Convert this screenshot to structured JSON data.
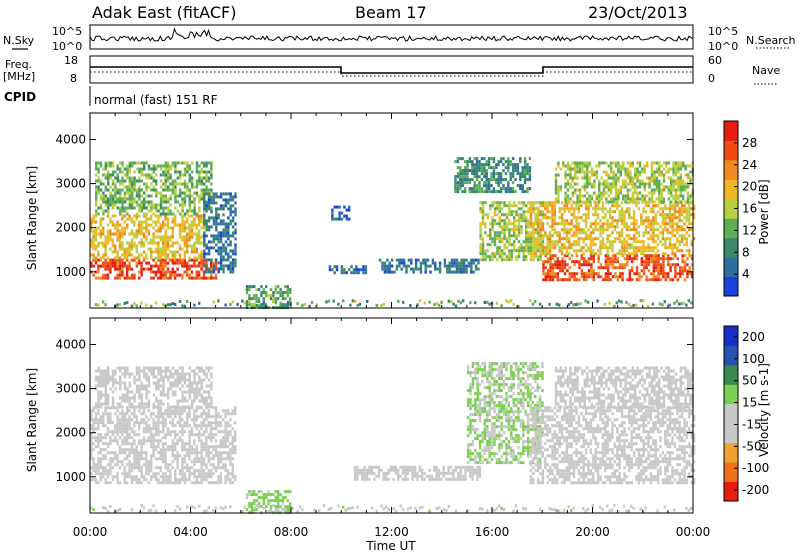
{
  "header": {
    "station": "Adak East (fitACF)",
    "beam": "Beam 17",
    "date": "23/Oct/2013"
  },
  "top_labels": {
    "nsky": "N.Sky",
    "nsearch": "N.Search",
    "freq": "Freq.",
    "freq_unit": "[MHz]",
    "nave": "Nave",
    "cpid": "CPID",
    "cpid_text": "normal (fast) 151 RF",
    "noise_tick_hi": "10^5",
    "noise_tick_lo": "10^0",
    "freq_tick_hi": "18",
    "freq_tick_lo": "8",
    "nave_tick_hi": "60",
    "nave_tick_lo": "0"
  },
  "colors": {
    "power": [
      "#1c3fe0",
      "#2f6fa0",
      "#3a8a6a",
      "#5fae52",
      "#b8d040",
      "#f0b820",
      "#f08a1e",
      "#f04a14",
      "#e81c10"
    ],
    "velocity": [
      "#e81c10",
      "#f07018",
      "#f0a030",
      "#c8c8c8",
      "#c8c8c8",
      "#7ad050",
      "#3a8a50",
      "#2850b0",
      "#1830c8"
    ]
  },
  "chart_data": [
    {
      "type": "heatmap",
      "name": "power-panel",
      "ylabel": "Slant Range [km]",
      "xlabel": "Time UT",
      "x_ticks": [
        "00:00",
        "04:00",
        "08:00",
        "12:00",
        "16:00",
        "20:00",
        "00:00"
      ],
      "x_range_hours": [
        0,
        24
      ],
      "ylim": [
        180,
        4600
      ],
      "y_ticks": [
        1000,
        2000,
        3000,
        4000
      ],
      "colorbar": {
        "title": "Power [dB]",
        "ticks": [
          "4",
          "8",
          "12",
          "16",
          "20",
          "24",
          "28"
        ],
        "range": [
          0,
          30
        ]
      },
      "regions": [
        {
          "t0": 0.0,
          "t1": 5.0,
          "r0": 850,
          "r1": 1300,
          "level": 26
        },
        {
          "t0": 0.0,
          "t1": 4.5,
          "r0": 1300,
          "r1": 2300,
          "level": 18
        },
        {
          "t0": 0.2,
          "t1": 4.8,
          "r0": 2300,
          "r1": 3500,
          "level": 12
        },
        {
          "t0": 4.5,
          "t1": 5.8,
          "r0": 1000,
          "r1": 2800,
          "level": 6
        },
        {
          "t0": 6.2,
          "t1": 8.0,
          "r0": 200,
          "r1": 700,
          "level": 10
        },
        {
          "t0": 9.6,
          "t1": 10.3,
          "r0": 2200,
          "r1": 2500,
          "level": 4
        },
        {
          "t0": 9.5,
          "t1": 11.0,
          "r0": 950,
          "r1": 1150,
          "level": 5
        },
        {
          "t0": 11.5,
          "t1": 15.5,
          "r0": 1000,
          "r1": 1300,
          "level": 6
        },
        {
          "t0": 14.5,
          "t1": 17.5,
          "r0": 2800,
          "r1": 3600,
          "level": 8
        },
        {
          "t0": 15.5,
          "t1": 18.0,
          "r0": 1300,
          "r1": 2600,
          "level": 14
        },
        {
          "t0": 18.0,
          "t1": 24.0,
          "r0": 850,
          "r1": 1400,
          "level": 25
        },
        {
          "t0": 17.5,
          "t1": 24.0,
          "r0": 1400,
          "r1": 2600,
          "level": 18
        },
        {
          "t0": 18.5,
          "t1": 24.0,
          "r0": 2600,
          "r1": 3500,
          "level": 14
        }
      ]
    },
    {
      "type": "heatmap",
      "name": "velocity-panel",
      "ylabel": "Slant Range [km]",
      "xlabel": "Time UT",
      "x_ticks": [
        "00:00",
        "04:00",
        "08:00",
        "12:00",
        "16:00",
        "20:00",
        "00:00"
      ],
      "x_range_hours": [
        0,
        24
      ],
      "ylim": [
        180,
        4600
      ],
      "y_ticks": [
        1000,
        2000,
        3000,
        4000
      ],
      "colorbar": {
        "title": "Velocity [m s-1]",
        "ticks": [
          "200",
          "100",
          "50",
          "15",
          "-15",
          "-50",
          "-100",
          "-200"
        ],
        "range": [
          -250,
          250
        ]
      },
      "regions": [
        {
          "t0": 0.0,
          "t1": 5.8,
          "r0": 850,
          "r1": 2600,
          "level": 0
        },
        {
          "t0": 0.2,
          "t1": 4.8,
          "r0": 2600,
          "r1": 3500,
          "level": 0
        },
        {
          "t0": 6.2,
          "t1": 8.0,
          "r0": 200,
          "r1": 700,
          "level": 40
        },
        {
          "t0": 10.5,
          "t1": 15.5,
          "r0": 950,
          "r1": 1250,
          "level": -60
        },
        {
          "t0": 15.0,
          "t1": 18.0,
          "r0": 1300,
          "r1": 3600,
          "level": 30
        },
        {
          "t0": 17.5,
          "t1": 24.0,
          "r0": 850,
          "r1": 2600,
          "level": 0
        },
        {
          "t0": 18.5,
          "t1": 24.0,
          "r0": 2600,
          "r1": 3500,
          "level": 0
        }
      ]
    }
  ]
}
